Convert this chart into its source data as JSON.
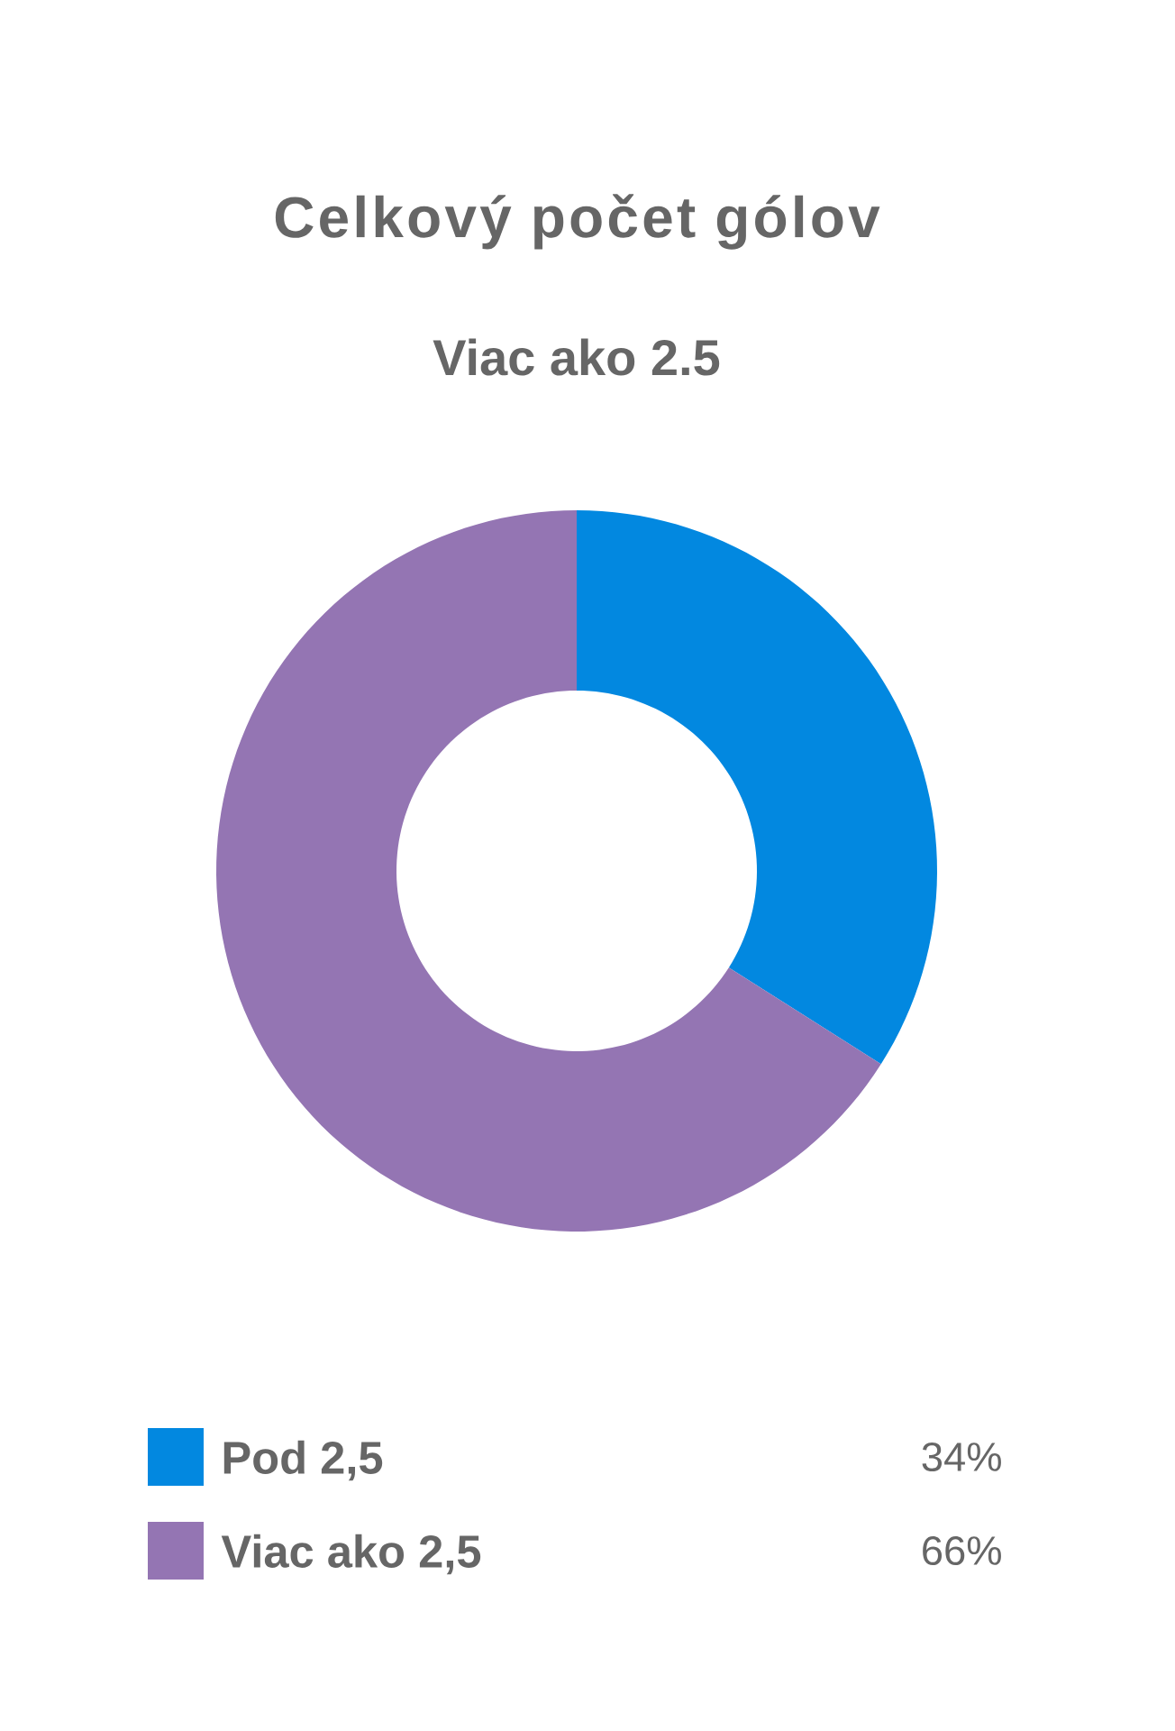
{
  "chart_data": {
    "type": "donut",
    "title": "Celkový počet gólov",
    "subtitle": "Viac ako 2.5",
    "categories": [
      "Pod 2,5",
      "Viac ako 2,5"
    ],
    "values": [
      34,
      66
    ],
    "colors": [
      "#0288e0",
      "#9475b3"
    ],
    "value_labels": [
      "34%",
      "66%"
    ],
    "legend": "bottom"
  }
}
